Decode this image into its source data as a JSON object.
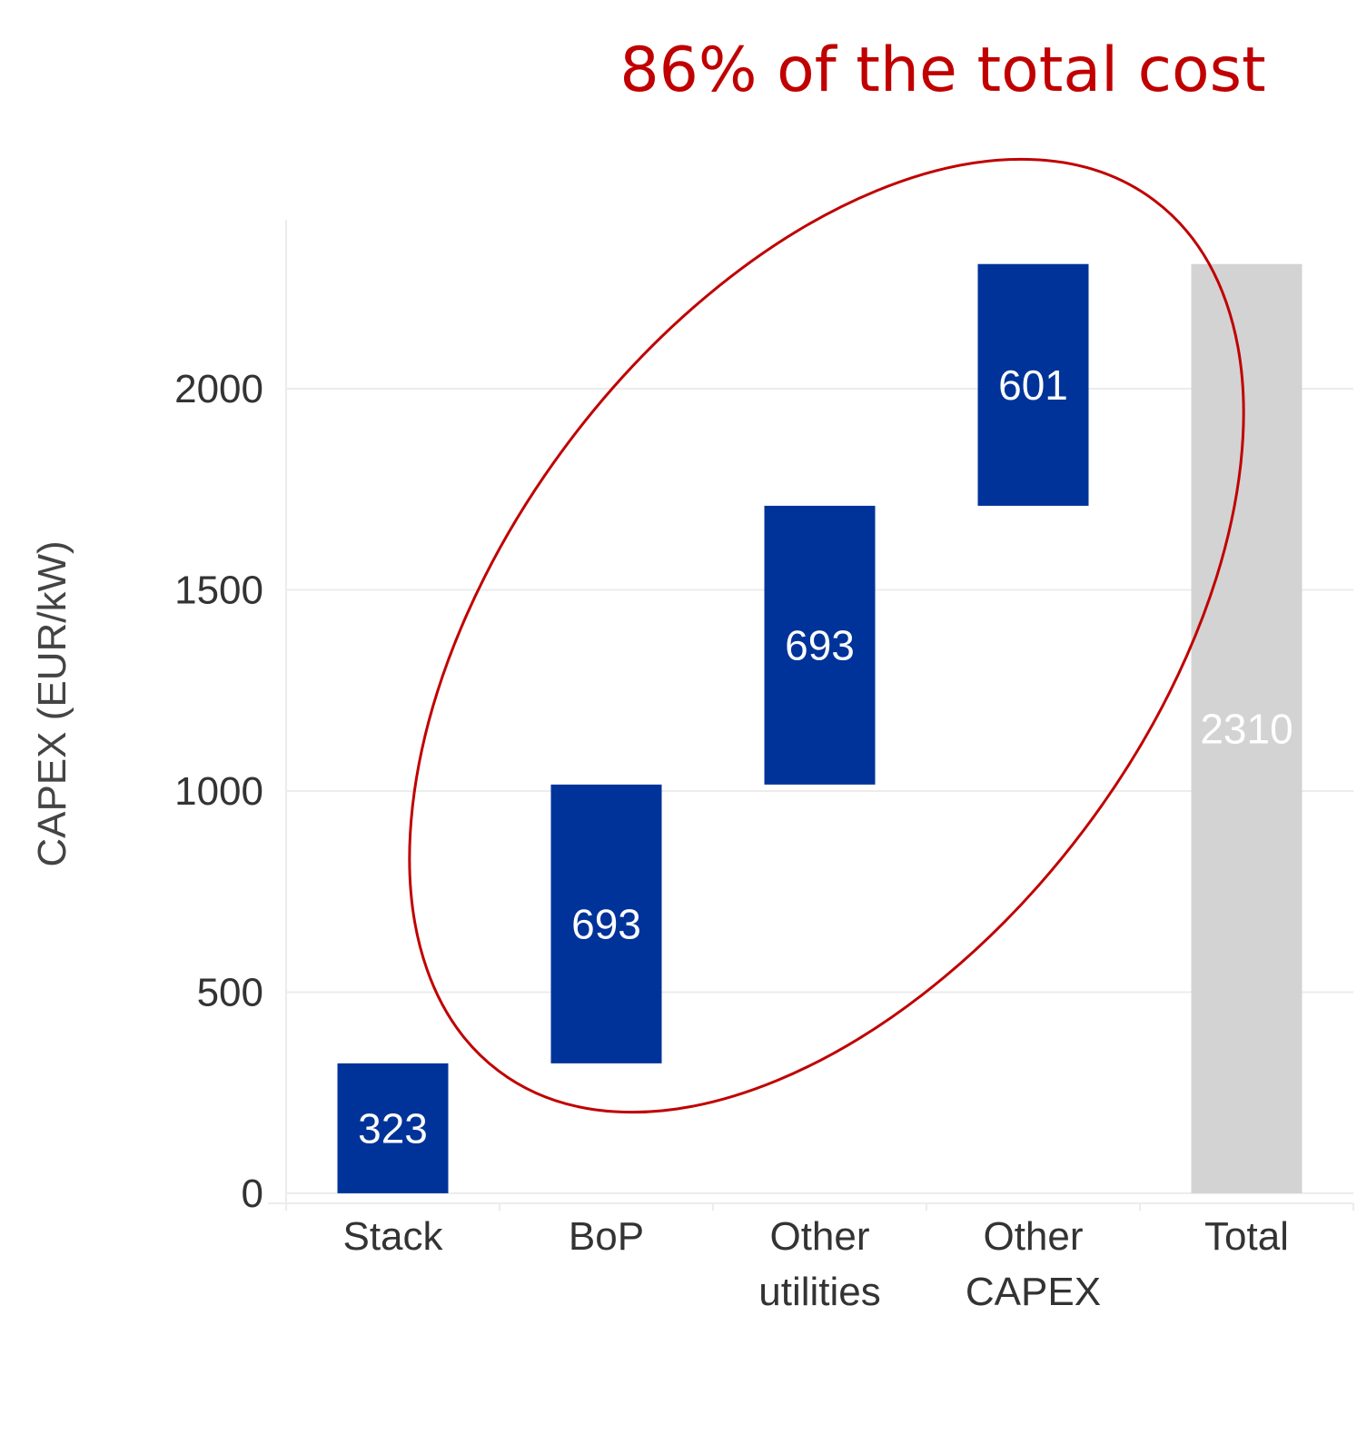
{
  "chart_data": {
    "type": "bar",
    "subtype": "waterfall",
    "title": "",
    "annotation": "86% of the total cost",
    "ylabel": "CAPEX (EUR/kW)",
    "xlabel": "",
    "ylim": [
      -25,
      2420
    ],
    "yticks": [
      0,
      500,
      1000,
      1500,
      2000
    ],
    "grid": true,
    "categories": [
      {
        "lines": [
          "Stack"
        ]
      },
      {
        "lines": [
          "BoP"
        ]
      },
      {
        "lines": [
          "Other",
          "utilities"
        ]
      },
      {
        "lines": [
          "Other",
          "CAPEX"
        ]
      },
      {
        "lines": [
          "Total"
        ]
      }
    ],
    "bars": [
      {
        "name": "Stack",
        "start": 0,
        "end": 323,
        "value": 323,
        "label": "323",
        "kind": "increment"
      },
      {
        "name": "BoP",
        "start": 323,
        "end": 1016,
        "value": 693,
        "label": "693",
        "kind": "increment"
      },
      {
        "name": "Other utilities",
        "start": 1016,
        "end": 1709,
        "value": 693,
        "label": "693",
        "kind": "increment"
      },
      {
        "name": "Other CAPEX",
        "start": 1709,
        "end": 2310,
        "value": 601,
        "label": "601",
        "kind": "increment"
      },
      {
        "name": "Total",
        "start": 0,
        "end": 2310,
        "value": 2310,
        "label": "2310",
        "kind": "total"
      }
    ],
    "colors": {
      "increment": "#003399",
      "total": "#d3d3d3",
      "label_on_increment": "#ffffff",
      "label_on_total": "#ffffff",
      "annotation": "#c00000",
      "grid": "#ececec",
      "axis_text": "#333333",
      "ylabel": "#444444"
    },
    "highlight": {
      "bars": [
        "BoP",
        "Other utilities",
        "Other CAPEX"
      ],
      "shape": "ellipse"
    }
  }
}
